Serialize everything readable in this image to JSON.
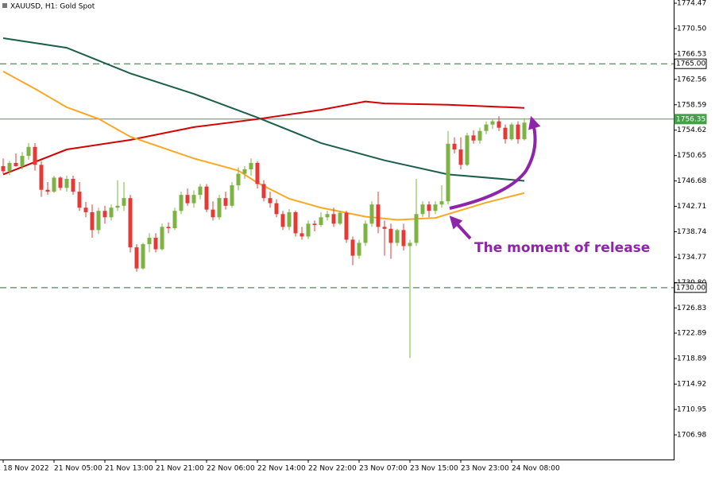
{
  "chart_data": {
    "type": "candlestick",
    "title": "XAUUSD, H1:  Gold Spot",
    "categories": [
      "18 Nov 2022",
      null,
      null,
      null,
      null,
      null,
      null,
      null,
      "21 Nov 05:00",
      null,
      null,
      null,
      null,
      null,
      null,
      null,
      "21 Nov 13:00",
      null,
      null,
      null,
      null,
      null,
      null,
      null,
      "21 Nov 21:00",
      null,
      null,
      null,
      null,
      null,
      null,
      null,
      "22 Nov 06:00",
      null,
      null,
      null,
      null,
      null,
      null,
      null,
      "22 Nov 14:00",
      null,
      null,
      null,
      null,
      null,
      null,
      null,
      "22 Nov 22:00",
      null,
      null,
      null,
      null,
      null,
      null,
      null,
      "23 Nov 07:00",
      null,
      null,
      null,
      null,
      null,
      null,
      null,
      "23 Nov 15:00",
      null,
      null,
      null,
      null,
      null,
      null,
      null,
      "23 Nov 23:00",
      null,
      null,
      null,
      null,
      null,
      null,
      null,
      "24 Nov 08:00",
      null,
      null
    ],
    "open": [
      1749.0,
      1748.2,
      1749.5,
      1749.0,
      1750.6,
      1752.0,
      1749.2,
      1745.3,
      1745.0,
      1747.2,
      1745.6,
      1747.0,
      1745.0,
      1742.5,
      1741.8,
      1739.0,
      1742.0,
      1741.0,
      1742.5,
      1742.8,
      1744.0,
      1736.3,
      1733.0,
      1736.8,
      1737.8,
      1736.0,
      1739.5,
      1739.3,
      1742.0,
      1744.5,
      1743.2,
      1744.5,
      1745.8,
      1742.2,
      1741.0,
      1744.0,
      1742.8,
      1746.0,
      1747.8,
      1748.5,
      1749.5,
      1746.2,
      1744.0,
      1743.2,
      1741.5,
      1739.5,
      1741.8,
      1738.5,
      1738.0,
      1740.0,
      1739.8,
      1741.0,
      1741.5,
      1740.0,
      1741.7,
      1737.5,
      1735.0,
      1737.0,
      1740.0,
      1743.0,
      1739.5,
      1739.2,
      1737.0,
      1739.0,
      1736.5,
      1737.0,
      1741.5,
      1743.0,
      1742.0,
      1743.0,
      1743.5,
      1752.5,
      1751.6,
      1749.2,
      1753.8,
      1753.0,
      1754.5,
      1755.5,
      1756.0,
      1755.0,
      1753.2,
      1755.5,
      1753.2
    ],
    "high": [
      1750.2,
      1749.8,
      1751.0,
      1751.2,
      1752.6,
      1752.6,
      1749.8,
      1746.5,
      1747.5,
      1747.4,
      1747.5,
      1747.5,
      1746.5,
      1743.4,
      1743.0,
      1742.5,
      1742.8,
      1743.0,
      1746.8,
      1746.5,
      1744.5,
      1736.8,
      1737.0,
      1738.5,
      1738.5,
      1740.0,
      1740.2,
      1742.5,
      1745.0,
      1745.5,
      1745.2,
      1746.2,
      1746.2,
      1743.5,
      1744.5,
      1745.0,
      1746.5,
      1748.8,
      1749.0,
      1750.2,
      1749.8,
      1746.8,
      1745.0,
      1743.8,
      1742.0,
      1742.3,
      1742.0,
      1739.5,
      1740.5,
      1740.5,
      1741.8,
      1742.0,
      1742.5,
      1742.0,
      1742.0,
      1738.0,
      1737.5,
      1740.5,
      1743.5,
      1745.0,
      1740.5,
      1740.0,
      1739.2,
      1740.0,
      1737.5,
      1747.0,
      1743.5,
      1743.5,
      1743.5,
      1746.0,
      1754.5,
      1753.5,
      1753.5,
      1754.2,
      1754.6,
      1755.0,
      1756.0,
      1756.3,
      1756.8,
      1755.5,
      1755.8,
      1756.0,
      1756.5
    ],
    "low": [
      1747.8,
      1747.6,
      1748.9,
      1748.5,
      1750.0,
      1748.3,
      1744.2,
      1744.5,
      1744.8,
      1745.2,
      1745.0,
      1744.5,
      1742.0,
      1741.0,
      1737.8,
      1738.4,
      1740.0,
      1740.5,
      1742.0,
      1742.0,
      1735.5,
      1732.5,
      1732.8,
      1735.5,
      1735.5,
      1735.8,
      1738.5,
      1739.0,
      1741.5,
      1742.8,
      1742.5,
      1743.8,
      1741.8,
      1740.5,
      1740.6,
      1742.2,
      1742.5,
      1745.2,
      1747.0,
      1747.5,
      1745.5,
      1743.5,
      1742.5,
      1741.0,
      1739.0,
      1739.0,
      1738.0,
      1737.5,
      1737.6,
      1738.8,
      1739.5,
      1740.5,
      1739.5,
      1739.8,
      1737.0,
      1733.5,
      1734.5,
      1736.5,
      1739.5,
      1738.5,
      1735.0,
      1734.5,
      1736.5,
      1735.8,
      1719.0,
      1736.5,
      1741.0,
      1741.0,
      1741.5,
      1742.5,
      1743.0,
      1751.0,
      1748.5,
      1749.0,
      1752.5,
      1752.5,
      1754.0,
      1754.8,
      1754.5,
      1752.5,
      1753.0,
      1752.5,
      1753.0
    ],
    "close": [
      1748.2,
      1749.5,
      1749.0,
      1750.6,
      1752.0,
      1749.2,
      1745.3,
      1745.0,
      1747.2,
      1745.6,
      1747.0,
      1745.0,
      1742.5,
      1741.8,
      1739.0,
      1742.0,
      1741.0,
      1742.5,
      1742.8,
      1744.0,
      1736.3,
      1733.0,
      1736.8,
      1737.8,
      1736.0,
      1739.5,
      1739.3,
      1742.0,
      1744.5,
      1743.2,
      1744.5,
      1745.8,
      1742.2,
      1741.0,
      1744.0,
      1742.8,
      1746.0,
      1747.8,
      1748.5,
      1749.5,
      1746.2,
      1744.0,
      1743.2,
      1741.5,
      1739.5,
      1741.8,
      1738.5,
      1738.0,
      1740.0,
      1739.8,
      1741.0,
      1741.5,
      1740.0,
      1741.7,
      1737.5,
      1735.0,
      1737.0,
      1740.0,
      1743.0,
      1739.5,
      1739.2,
      1737.0,
      1739.0,
      1736.5,
      1737.0,
      1741.5,
      1743.0,
      1742.0,
      1743.0,
      1743.5,
      1752.5,
      1751.6,
      1749.2,
      1753.8,
      1753.0,
      1754.5,
      1755.5,
      1756.0,
      1755.0,
      1753.2,
      1755.5,
      1753.2,
      1755.8
    ],
    "up_color": "#7cb342",
    "down_color": "#e53935",
    "moving_averages": [
      {
        "color": "#d50000",
        "x": [
          0,
          10,
          20,
          30,
          40,
          50,
          57,
          60,
          70,
          82
        ],
        "values": [
          1747.7,
          1751.6,
          1753.1,
          1755.1,
          1756.35,
          1757.8,
          1759.1,
          1758.8,
          1758.6,
          1758.1
        ]
      },
      {
        "color": "#1b5e4a",
        "x": [
          0,
          10,
          15,
          20,
          30,
          40,
          50,
          60,
          70,
          82
        ],
        "values": [
          1769.0,
          1767.5,
          1765.5,
          1763.5,
          1760.3,
          1756.6,
          1752.6,
          1749.9,
          1747.7,
          1746.7
        ]
      },
      {
        "color": "#f9a825",
        "x": [
          0,
          5,
          10,
          15,
          20,
          30,
          37,
          40,
          45,
          50,
          57,
          62,
          68,
          72,
          76,
          82
        ],
        "values": [
          1763.8,
          1761.1,
          1758.2,
          1756.4,
          1753.6,
          1750.2,
          1748.3,
          1746.4,
          1743.9,
          1742.5,
          1741.1,
          1740.6,
          1740.9,
          1742.1,
          1743.3,
          1744.8
        ]
      }
    ],
    "levels": [
      {
        "value": 1765,
        "label": "1765.00",
        "style": "dashed",
        "color": "#2e6b3a",
        "box": "#ffffff",
        "text_color": "#000000"
      },
      {
        "value": 1756.35,
        "label": "1756.35",
        "style": "solid",
        "color": "#43a047",
        "box": "#43a047",
        "text_color": "#ffffff"
      },
      {
        "value": 1730,
        "label": "1730.00",
        "style": "dashed",
        "color": "#2e6b3a",
        "box": "#ffffff",
        "text_color": "#000000"
      }
    ],
    "ylim": [
      1703.13,
      1774.97
    ],
    "yticks": [
      1774.47,
      {
        "value": 1770.5,
        "label": "1770.50"
      },
      1766.53,
      1762.56,
      1758.59,
      1754.62,
      1750.65,
      1746.68,
      1742.71,
      1738.74,
      1734.77,
      {
        "value": 1730.8,
        "label": "1730.80"
      },
      1726.83,
      1722.89,
      1718.89,
      1714.92,
      1710.95,
      1706.98
    ],
    "annotation": "The moment of release",
    "annotation_color": "#8e24aa"
  }
}
